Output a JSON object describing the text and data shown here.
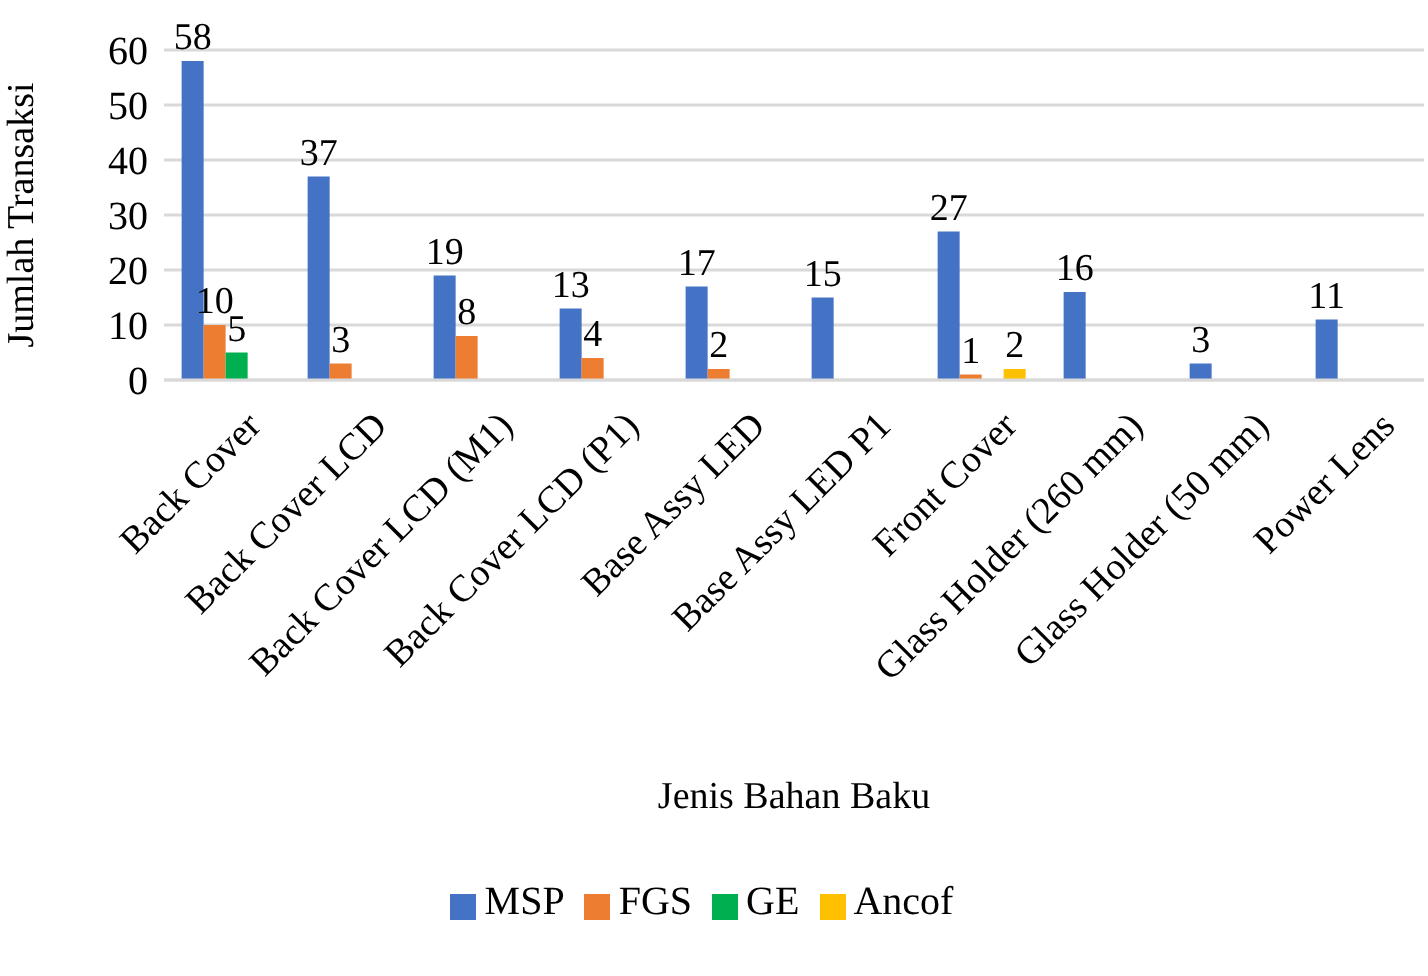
{
  "chart_data": {
    "type": "bar",
    "xlabel": "Jenis Bahan Baku",
    "ylabel": "Jumlah Transaksi",
    "categories": [
      "Back Cover",
      "Back Cover LCD",
      "Back Cover LCD (M1)",
      "Back Cover LCD (P1)",
      "Base Assy LED",
      "Base Assy LED P1",
      "Front Cover",
      "Glass Holder (260 mm)",
      "Glass Holder (50 mm)",
      "Power Lens"
    ],
    "series": [
      {
        "name": "MSP",
        "color": "#4472c4",
        "values": [
          58,
          37,
          19,
          13,
          17,
          15,
          27,
          16,
          3,
          11
        ]
      },
      {
        "name": "FGS",
        "color": "#ed7d31",
        "values": [
          10,
          3,
          8,
          4,
          2,
          null,
          1,
          null,
          null,
          null
        ]
      },
      {
        "name": "GE",
        "color": "#00b050",
        "values": [
          5,
          null,
          null,
          null,
          null,
          null,
          null,
          null,
          null,
          null
        ]
      },
      {
        "name": "Ancof",
        "color": "#ffc000",
        "values": [
          null,
          null,
          null,
          null,
          null,
          null,
          2,
          null,
          null,
          null
        ]
      }
    ],
    "ylim": [
      0,
      60
    ],
    "yticks": [
      0,
      10,
      20,
      30,
      40,
      50,
      60
    ],
    "grid": "y",
    "legend": "bottom",
    "data_labels": true
  }
}
